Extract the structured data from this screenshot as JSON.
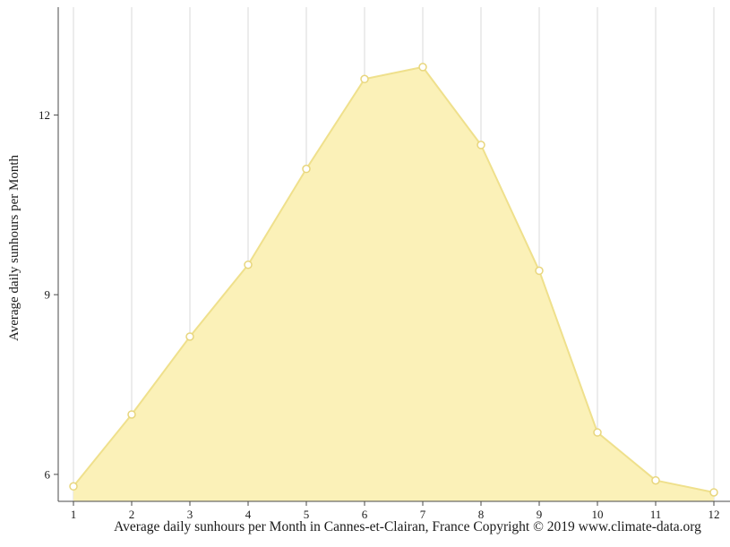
{
  "chart_data": {
    "type": "area",
    "x": [
      1,
      2,
      3,
      4,
      5,
      6,
      7,
      8,
      9,
      10,
      11,
      12
    ],
    "values": [
      5.8,
      7.0,
      8.3,
      9.5,
      11.1,
      12.6,
      12.8,
      11.5,
      9.4,
      6.7,
      5.9,
      5.7
    ],
    "series_name": "Average daily sunhours",
    "xlabel": "Average daily sunhours per Month in Cannes-et-Clairan, France Copyright © 2019 www.climate-data.org",
    "ylabel": "Average daily sunhours per Month",
    "yticks": [
      6,
      9,
      12
    ],
    "ylim": [
      5.55,
      13.8
    ],
    "grid": "vertical",
    "legend": "none",
    "colors": {
      "area_fill": "#FBF1B8",
      "line": "#EFE08C",
      "marker_fill": "#FFFFFF",
      "marker_stroke": "#E8D67E",
      "grid": "#D9D9D9",
      "axis": "#4a4a4a",
      "text": "#1a1a1a"
    }
  }
}
